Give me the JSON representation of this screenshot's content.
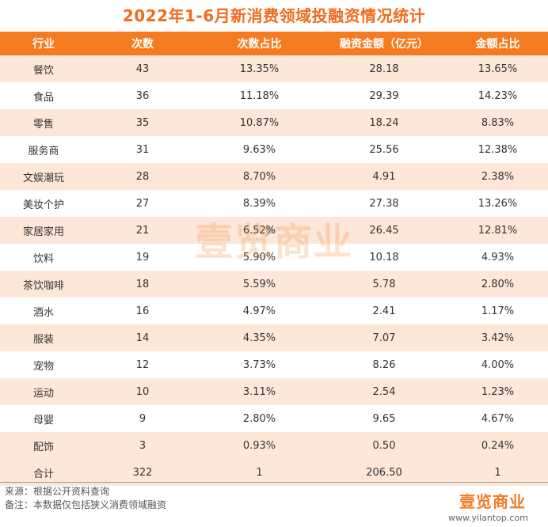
{
  "title": "2022年1-6月新消费领域投融资情况统计",
  "chart_data": {
    "type": "table",
    "columns": [
      "行业",
      "次数",
      "次数占比",
      "融资金额（亿元）",
      "金额占比"
    ],
    "rows": [
      [
        "餐饮",
        "43",
        "13.35%",
        "28.18",
        "13.65%"
      ],
      [
        "食品",
        "36",
        "11.18%",
        "29.39",
        "14.23%"
      ],
      [
        "零售",
        "35",
        "10.87%",
        "18.24",
        "8.83%"
      ],
      [
        "服务商",
        "31",
        "9.63%",
        "25.56",
        "12.38%"
      ],
      [
        "文娱潮玩",
        "28",
        "8.70%",
        "4.91",
        "2.38%"
      ],
      [
        "美妆个护",
        "27",
        "8.39%",
        "27.38",
        "13.26%"
      ],
      [
        "家居家用",
        "21",
        "6.52%",
        "26.45",
        "12.81%"
      ],
      [
        "饮料",
        "19",
        "5.90%",
        "10.18",
        "4.93%"
      ],
      [
        "茶饮咖啡",
        "18",
        "5.59%",
        "5.78",
        "2.80%"
      ],
      [
        "酒水",
        "16",
        "4.97%",
        "2.41",
        "1.17%"
      ],
      [
        "服装",
        "14",
        "4.35%",
        "7.07",
        "3.42%"
      ],
      [
        "宠物",
        "12",
        "3.73%",
        "8.26",
        "4.00%"
      ],
      [
        "运动",
        "10",
        "3.11%",
        "2.54",
        "1.23%"
      ],
      [
        "母婴",
        "9",
        "2.80%",
        "9.65",
        "4.67%"
      ],
      [
        "配饰",
        "3",
        "0.93%",
        "0.50",
        "0.24%"
      ]
    ],
    "total": [
      "合计",
      "322",
      "1",
      "206.50",
      "1"
    ]
  },
  "notes": {
    "source": "来源：根据公开资料查询",
    "remark": "备注：本数据仅包括狭义消费领域融资"
  },
  "watermark": "壹览商业",
  "logo": "壹览商业",
  "site": "www.yilantop.com",
  "colors": {
    "accent": "#f47b20",
    "title": "#f26b1d",
    "stripe": "#fde7d8"
  }
}
